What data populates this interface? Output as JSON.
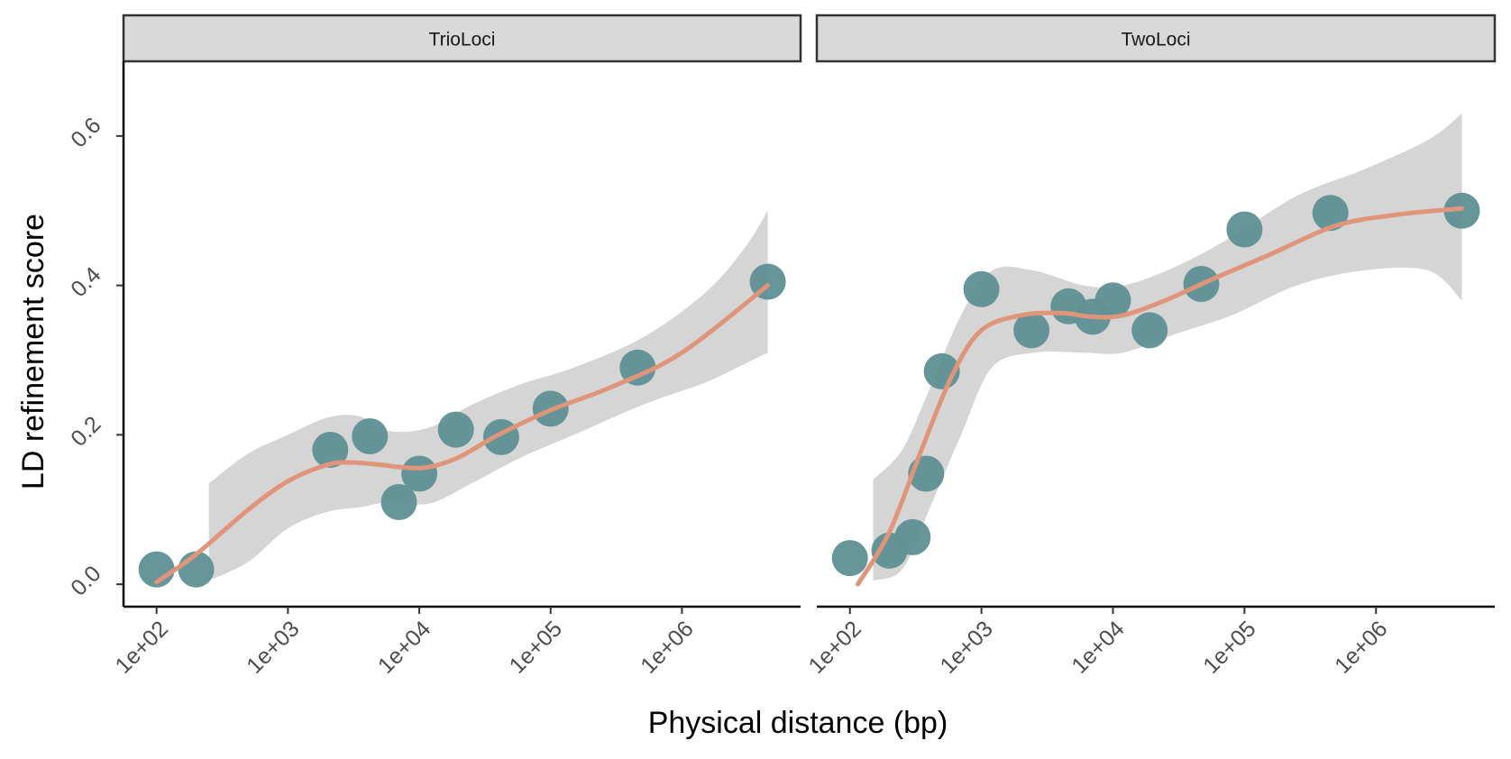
{
  "chart_data": {
    "type": "scatter",
    "title": "",
    "xlabel": "Physical distance (bp)",
    "ylabel": "LD refinement score",
    "x_scale": "log10",
    "xlim": [
      56,
      8000000
    ],
    "ylim": [
      -0.03,
      0.7
    ],
    "x_ticks": [
      100,
      1000,
      10000,
      100000,
      1000000
    ],
    "x_tick_labels": [
      "1e+02",
      "1e+03",
      "1e+04",
      "1e+05",
      "1e+06"
    ],
    "y_ticks": [
      0.0,
      0.2,
      0.4,
      0.6
    ],
    "y_tick_labels": [
      "0.0",
      "0.2",
      "0.4",
      "0.6"
    ],
    "grid": false,
    "colors": {
      "point": "#5f9095",
      "smooth_line": "#e0957a",
      "ribbon": "#d3d3d3",
      "strip_fill": "#d9d9d9",
      "axis": "#000000"
    },
    "panels": [
      {
        "label": "TrioLoci",
        "points": [
          {
            "x": 100,
            "y": 0.02
          },
          {
            "x": 200,
            "y": 0.02
          },
          {
            "x": 2100,
            "y": 0.18
          },
          {
            "x": 4200,
            "y": 0.198
          },
          {
            "x": 7000,
            "y": 0.11
          },
          {
            "x": 10000,
            "y": 0.148
          },
          {
            "x": 19000,
            "y": 0.207
          },
          {
            "x": 42000,
            "y": 0.197
          },
          {
            "x": 100000,
            "y": 0.235
          },
          {
            "x": 460000,
            "y": 0.29
          },
          {
            "x": 4500000,
            "y": 0.405
          }
        ],
        "smooth": [
          {
            "x": 100,
            "y": 0.003
          },
          {
            "x": 200,
            "y": 0.04
          },
          {
            "x": 500,
            "y": 0.1
          },
          {
            "x": 1000,
            "y": 0.138
          },
          {
            "x": 2000,
            "y": 0.16
          },
          {
            "x": 3000,
            "y": 0.163
          },
          {
            "x": 5000,
            "y": 0.16
          },
          {
            "x": 8000,
            "y": 0.156
          },
          {
            "x": 12000,
            "y": 0.157
          },
          {
            "x": 20000,
            "y": 0.17
          },
          {
            "x": 40000,
            "y": 0.2
          },
          {
            "x": 100000,
            "y": 0.233
          },
          {
            "x": 300000,
            "y": 0.265
          },
          {
            "x": 1000000,
            "y": 0.31
          },
          {
            "x": 4500000,
            "y": 0.4
          }
        ],
        "ribbon_upper": [
          {
            "x": 250,
            "y": 0.135
          },
          {
            "x": 500,
            "y": 0.175
          },
          {
            "x": 1000,
            "y": 0.2
          },
          {
            "x": 2000,
            "y": 0.223
          },
          {
            "x": 3500,
            "y": 0.225
          },
          {
            "x": 6000,
            "y": 0.205
          },
          {
            "x": 12000,
            "y": 0.21
          },
          {
            "x": 25000,
            "y": 0.24
          },
          {
            "x": 60000,
            "y": 0.268
          },
          {
            "x": 150000,
            "y": 0.29
          },
          {
            "x": 500000,
            "y": 0.33
          },
          {
            "x": 1500000,
            "y": 0.39
          },
          {
            "x": 3000000,
            "y": 0.45
          },
          {
            "x": 4500000,
            "y": 0.5
          }
        ],
        "ribbon_lower": [
          {
            "x": 250,
            "y": 0.005
          },
          {
            "x": 500,
            "y": 0.03
          },
          {
            "x": 1000,
            "y": 0.075
          },
          {
            "x": 2000,
            "y": 0.097
          },
          {
            "x": 3500,
            "y": 0.103
          },
          {
            "x": 6000,
            "y": 0.11
          },
          {
            "x": 12000,
            "y": 0.108
          },
          {
            "x": 25000,
            "y": 0.135
          },
          {
            "x": 60000,
            "y": 0.17
          },
          {
            "x": 150000,
            "y": 0.2
          },
          {
            "x": 500000,
            "y": 0.24
          },
          {
            "x": 1500000,
            "y": 0.27
          },
          {
            "x": 3000000,
            "y": 0.295
          },
          {
            "x": 4500000,
            "y": 0.31
          }
        ]
      },
      {
        "label": "TwoLoci",
        "points": [
          {
            "x": 100,
            "y": 0.035
          },
          {
            "x": 200,
            "y": 0.045
          },
          {
            "x": 300,
            "y": 0.063
          },
          {
            "x": 380,
            "y": 0.148
          },
          {
            "x": 500,
            "y": 0.285
          },
          {
            "x": 1000,
            "y": 0.395
          },
          {
            "x": 2400,
            "y": 0.34
          },
          {
            "x": 4600,
            "y": 0.372
          },
          {
            "x": 7000,
            "y": 0.358
          },
          {
            "x": 10000,
            "y": 0.38
          },
          {
            "x": 19000,
            "y": 0.34
          },
          {
            "x": 47000,
            "y": 0.402
          },
          {
            "x": 100000,
            "y": 0.475
          },
          {
            "x": 450000,
            "y": 0.497
          },
          {
            "x": 4500000,
            "y": 0.5
          }
        ],
        "smooth": [
          {
            "x": 115,
            "y": 0.0
          },
          {
            "x": 200,
            "y": 0.07
          },
          {
            "x": 350,
            "y": 0.18
          },
          {
            "x": 600,
            "y": 0.28
          },
          {
            "x": 1000,
            "y": 0.34
          },
          {
            "x": 2000,
            "y": 0.36
          },
          {
            "x": 4000,
            "y": 0.363
          },
          {
            "x": 7000,
            "y": 0.358
          },
          {
            "x": 12000,
            "y": 0.36
          },
          {
            "x": 25000,
            "y": 0.38
          },
          {
            "x": 60000,
            "y": 0.41
          },
          {
            "x": 150000,
            "y": 0.44
          },
          {
            "x": 500000,
            "y": 0.48
          },
          {
            "x": 1500000,
            "y": 0.495
          },
          {
            "x": 4500000,
            "y": 0.503
          }
        ],
        "ribbon_upper": [
          {
            "x": 150,
            "y": 0.14
          },
          {
            "x": 250,
            "y": 0.18
          },
          {
            "x": 400,
            "y": 0.26
          },
          {
            "x": 700,
            "y": 0.36
          },
          {
            "x": 1200,
            "y": 0.42
          },
          {
            "x": 2500,
            "y": 0.42
          },
          {
            "x": 6000,
            "y": 0.4
          },
          {
            "x": 12000,
            "y": 0.4
          },
          {
            "x": 30000,
            "y": 0.425
          },
          {
            "x": 80000,
            "y": 0.465
          },
          {
            "x": 250000,
            "y": 0.52
          },
          {
            "x": 800000,
            "y": 0.555
          },
          {
            "x": 2500000,
            "y": 0.595
          },
          {
            "x": 4500000,
            "y": 0.63
          }
        ],
        "ribbon_lower": [
          {
            "x": 150,
            "y": 0.005
          },
          {
            "x": 250,
            "y": 0.02
          },
          {
            "x": 400,
            "y": 0.1
          },
          {
            "x": 700,
            "y": 0.2
          },
          {
            "x": 1200,
            "y": 0.29
          },
          {
            "x": 2500,
            "y": 0.31
          },
          {
            "x": 6000,
            "y": 0.31
          },
          {
            "x": 12000,
            "y": 0.31
          },
          {
            "x": 30000,
            "y": 0.335
          },
          {
            "x": 80000,
            "y": 0.36
          },
          {
            "x": 250000,
            "y": 0.4
          },
          {
            "x": 800000,
            "y": 0.42
          },
          {
            "x": 2500000,
            "y": 0.42
          },
          {
            "x": 4500000,
            "y": 0.38
          }
        ]
      }
    ]
  }
}
